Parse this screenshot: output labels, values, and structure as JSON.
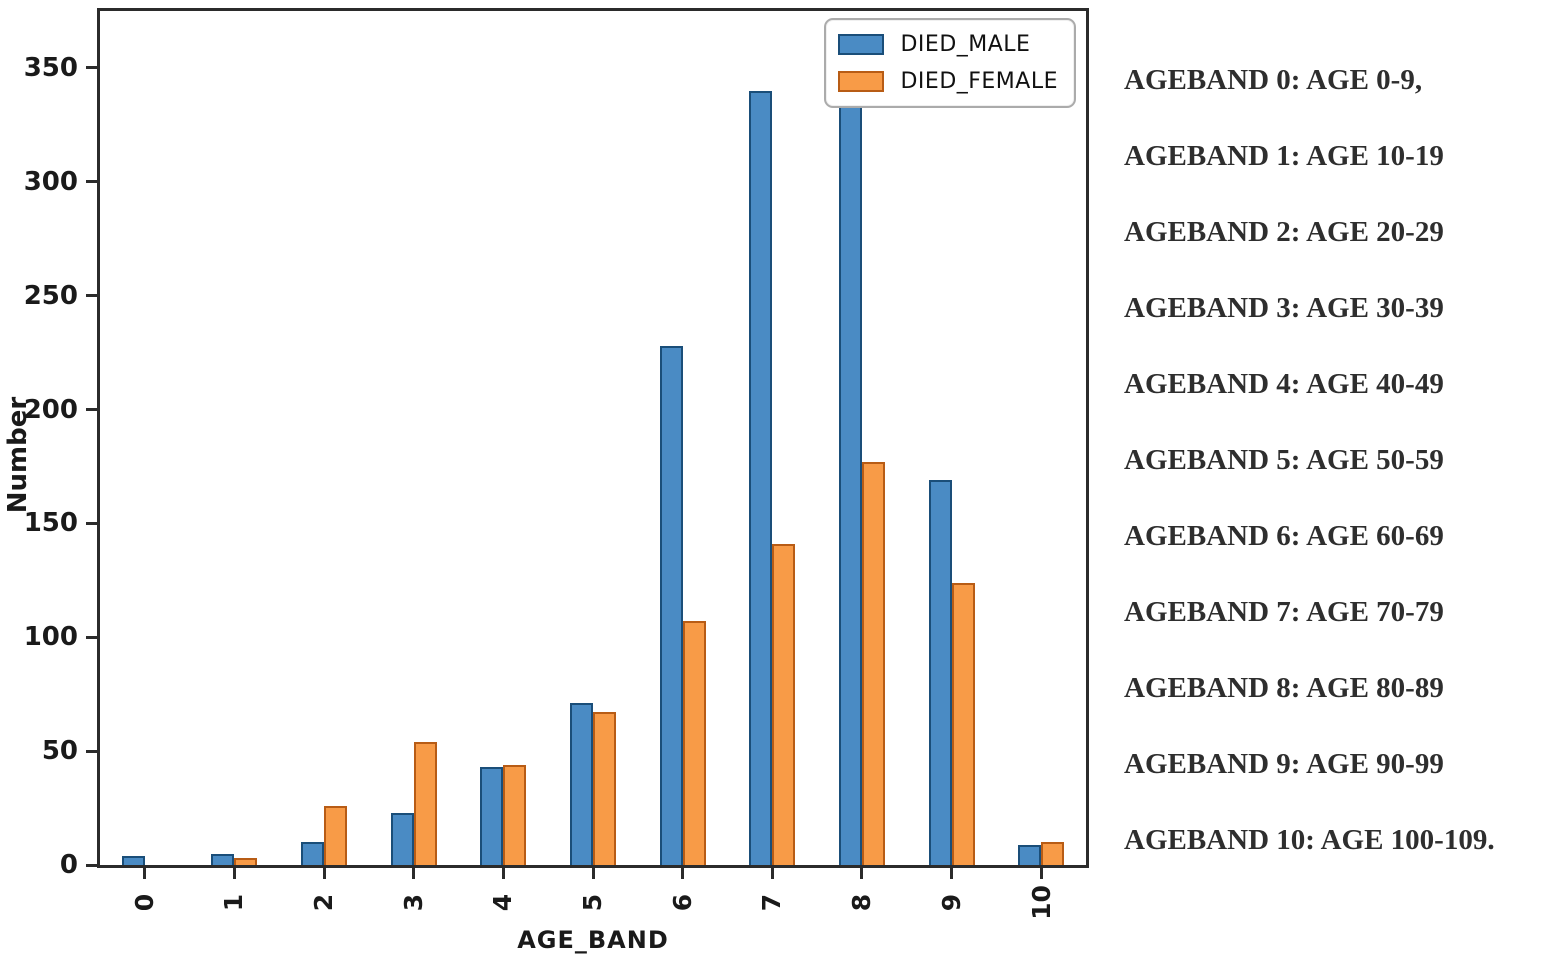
{
  "figure": {
    "background": "#ffffff",
    "spine_color": "#2b2b2b",
    "tick_text_color": "#1a1a1a"
  },
  "chart_data": {
    "type": "bar",
    "title": "",
    "xlabel": "AGE_BAND",
    "ylabel": "Number",
    "categories": [
      "0",
      "1",
      "2",
      "3",
      "4",
      "5",
      "6",
      "7",
      "8",
      "9",
      "10"
    ],
    "series": [
      {
        "name": "DIED_MALE",
        "color": "#4a8bc4",
        "edge_color": "#1a4e79",
        "values": [
          4,
          5,
          10,
          23,
          43,
          71,
          228,
          340,
          358,
          169,
          9
        ]
      },
      {
        "name": "DIED_FEMALE",
        "color": "#f89b47",
        "edge_color": "#b85c15",
        "values": [
          0,
          3,
          26,
          54,
          44,
          67,
          107,
          141,
          177,
          124,
          10
        ]
      }
    ],
    "ylim": [
      0,
      375
    ],
    "yticks": [
      0,
      50,
      100,
      150,
      200,
      250,
      300,
      350
    ],
    "x_tick_rotation": 90,
    "grid": false,
    "legend_position": "upper right"
  },
  "legend": {
    "items": [
      {
        "label": "DIED_MALE",
        "color": "#4a8bc4",
        "edge_color": "#1a4e79"
      },
      {
        "label": "DIED_FEMALE",
        "color": "#f89b47",
        "edge_color": "#b85c15"
      }
    ]
  },
  "annotations": {
    "text_color": "#2e2e2e",
    "lines": [
      "AGEBAND 0: AGE 0-9,",
      "AGEBAND 1: AGE 10-19",
      "AGEBAND 2: AGE 20-29",
      "AGEBAND 3: AGE 30-39",
      "AGEBAND 4: AGE 40-49",
      "AGEBAND 5: AGE 50-59",
      "AGEBAND 6: AGE 60-69",
      "AGEBAND 7: AGE 70-79",
      "AGEBAND 8: AGE 80-89",
      "AGEBAND 9: AGE 90-99",
      "AGEBAND 10: AGE 100-109."
    ]
  }
}
